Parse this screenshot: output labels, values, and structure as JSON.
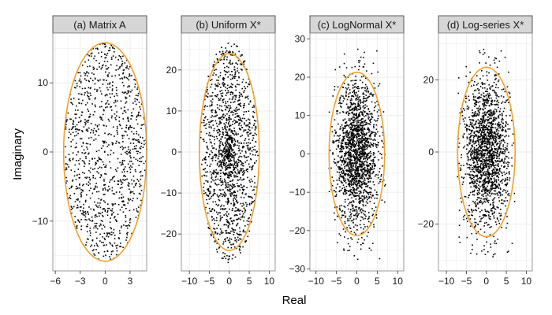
{
  "figure": {
    "xlabel": "Real",
    "ylabel": "Imaginary"
  },
  "colors": {
    "ellipse": "#f2a22c",
    "points": "#000000",
    "grid": "#ebebeb",
    "strip_fill": "#d6d6d6",
    "strip_border": "#333333",
    "panel_border": "#7f7f7f"
  },
  "chart_data": [
    {
      "type": "scatter",
      "title": "(a) Matrix A",
      "xlim": [
        -6.3,
        5.0
      ],
      "ylim": [
        -17.2,
        17.2
      ],
      "xticks": [
        -6,
        -3,
        0,
        3
      ],
      "xtick_labels": [
        "−6",
        "−3",
        "0",
        "3"
      ],
      "yticks": [
        -10,
        0,
        10
      ],
      "ytick_labels": [
        "−10",
        "0",
        "10"
      ],
      "ellipse": {
        "center": [
          0,
          0
        ],
        "rx": 5.0,
        "ry": 15.8
      },
      "point_distribution": "uniform",
      "point_extent": {
        "rx": 5.0,
        "ry": 15.8
      },
      "grid": true
    },
    {
      "type": "scatter",
      "title": "(b) Uniform X*",
      "xlim": [
        -12,
        11.5
      ],
      "ylim": [
        -29,
        29
      ],
      "xticks": [
        -10,
        -5,
        0,
        5,
        10
      ],
      "xtick_labels": [
        "−10",
        "−5",
        "0",
        "5",
        "10"
      ],
      "yticks": [
        -20,
        -10,
        0,
        10,
        20
      ],
      "ytick_labels": [
        "−20",
        "−10",
        "0",
        "10",
        "20"
      ],
      "ellipse": {
        "center": [
          0,
          0
        ],
        "rx": 7.5,
        "ry": 24.0
      },
      "point_distribution": "centered-dense",
      "point_extent": {
        "rx": 7.2,
        "ry": 27.0
      },
      "grid": true
    },
    {
      "type": "scatter",
      "title": "(c) LogNormal X*",
      "xlim": [
        -11.5,
        11.5
      ],
      "ylim": [
        -30.5,
        31.5
      ],
      "xticks": [
        -10,
        -5,
        0,
        5,
        10
      ],
      "xtick_labels": [
        "−10",
        "−5",
        "0",
        "5",
        "10"
      ],
      "yticks": [
        -30,
        -20,
        -10,
        0,
        10,
        20,
        30
      ],
      "ytick_labels": [
        "−30",
        "−20",
        "−10",
        "0",
        "10",
        "20",
        "30"
      ],
      "ellipse": {
        "center": [
          0,
          0
        ],
        "rx": 6.8,
        "ry": 21.3
      },
      "point_distribution": "gaussian",
      "point_extent": {
        "rx": 7.0,
        "ry": 27.5
      },
      "grid": true
    },
    {
      "type": "scatter",
      "title": "(d) Log-series X*",
      "xlim": [
        -12,
        11.5
      ],
      "ylim": [
        -33,
        33
      ],
      "xticks": [
        -10,
        -5,
        0,
        5,
        10
      ],
      "xtick_labels": [
        "−10",
        "−5",
        "0",
        "5",
        "10"
      ],
      "yticks": [
        -20,
        0,
        20
      ],
      "ytick_labels": [
        "−20",
        "0",
        "20"
      ],
      "ellipse": {
        "center": [
          0,
          0
        ],
        "rx": 7.2,
        "ry": 23.5
      },
      "point_distribution": "gaussian-wide",
      "point_extent": {
        "rx": 7.2,
        "ry": 29.5
      },
      "grid": true
    }
  ]
}
